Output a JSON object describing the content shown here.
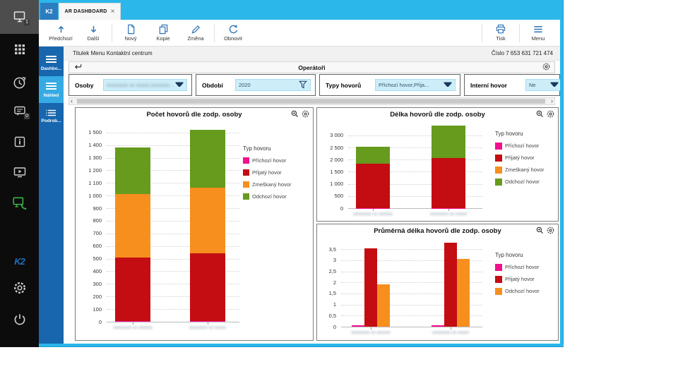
{
  "tabs": {
    "k2_tab": "K2",
    "active_tab": "AR DASHBOARD",
    "close": "×"
  },
  "toolbar": {
    "buttons": [
      {
        "label": "Předchozí",
        "icon": "arrow-up"
      },
      {
        "label": "Další",
        "icon": "arrow-down"
      },
      {
        "label": "Nový",
        "icon": "new-document"
      },
      {
        "label": "Kopie",
        "icon": "copy"
      },
      {
        "label": "Změna",
        "icon": "edit-pencil"
      },
      {
        "label": "Obnovit",
        "icon": "refresh"
      }
    ],
    "right_buttons": [
      {
        "label": "Tisk",
        "icon": "printer"
      },
      {
        "label": "Menu",
        "icon": "hamburger"
      }
    ]
  },
  "left_rail": {
    "logo": "K2",
    "desktop_badge": "1",
    "chat_badge": "0",
    "icons": [
      "desktop",
      "apps-grid",
      "history-clock",
      "chat",
      "info",
      "media-monitor",
      "callcenter-phone",
      "settings-gear",
      "power"
    ]
  },
  "nav": {
    "items": [
      {
        "label": "Dashbo...",
        "active": false
      },
      {
        "label": "Náhled",
        "active": true
      },
      {
        "label": "Podrob...",
        "active": false
      }
    ]
  },
  "header": {
    "title": "Titulek Menu Kontaktní centrum",
    "record_number": "Číslo 7 653 631 721 474"
  },
  "panel": {
    "title": "Operátoři"
  },
  "filters": [
    {
      "label": "Osoby",
      "value": "xxxxxxxx xx xxxxx,xxxxxxx...",
      "redacted": true,
      "icon": "dropdown"
    },
    {
      "label": "Období",
      "value": "2020",
      "redacted": false,
      "icon": "funnel"
    },
    {
      "label": "Typy hovorů",
      "value": "Příchozí hovor,Přija...",
      "redacted": false,
      "icon": "dropdown"
    },
    {
      "label": "Interní hovor",
      "value": "Ne",
      "redacted": false,
      "icon": "dropdown"
    }
  ],
  "scrollbar": {
    "left_arrow": "‹",
    "right_arrow": "›"
  },
  "colors": {
    "accent_cyan": "#2bb7e9",
    "nav_blue": "#1766ae",
    "nav_selected": "#35aae3",
    "toolbar_icon": "#2e74b5",
    "prichozi": "#f2108d",
    "prijaty": "#c40d12",
    "zmeskany": "#f78f1e",
    "odchozi": "#669b1e"
  },
  "chart_data": [
    {
      "type": "stacked-bar",
      "title": "Počet hovorů dle zodp. osoby",
      "legend_title": "Typ hovoru",
      "legend_position": "right",
      "grid": "horizontal-dotted",
      "categories": [
        "xxxxxxxx xx xxxxxx",
        "xxxxxxxx xx xxxxx"
      ],
      "categories_redacted": true,
      "series": [
        {
          "name": "Příchozí hovor",
          "color": "#f2108d",
          "values": [
            5,
            8
          ]
        },
        {
          "name": "Přijatý hovor",
          "color": "#c40d12",
          "values": [
            505,
            535
          ]
        },
        {
          "name": "Zmeškaný hovor",
          "color": "#f78f1e",
          "values": [
            500,
            520
          ]
        },
        {
          "name": "Odchozí hovor",
          "color": "#669b1e",
          "values": [
            373,
            460
          ]
        }
      ],
      "totals": [
        1383,
        1523
      ],
      "ylim": [
        0,
        1560
      ],
      "yticks": [
        [
          0,
          "0"
        ],
        [
          100,
          "100"
        ],
        [
          200,
          "200"
        ],
        [
          300,
          "300"
        ],
        [
          400,
          "400"
        ],
        [
          500,
          "500"
        ],
        [
          600,
          "600"
        ],
        [
          700,
          "700"
        ],
        [
          800,
          "800"
        ],
        [
          900,
          "900"
        ],
        [
          1000,
          "1 000"
        ],
        [
          1100,
          "1 100"
        ],
        [
          1200,
          "1 200"
        ],
        [
          1300,
          "1 300"
        ],
        [
          1400,
          "1 400"
        ],
        [
          1500,
          "1 500"
        ]
      ]
    },
    {
      "type": "stacked-bar",
      "title": "Délka hovorů dle zodp. osoby",
      "legend_title": "Typ hovoru",
      "legend_position": "right",
      "grid": "horizontal-dotted",
      "categories": [
        "xxxxxxxx xx xxxxxx",
        "xxxxxxxx xx xxxxx"
      ],
      "categories_redacted": true,
      "series": [
        {
          "name": "Příchozí hovor",
          "color": "#f2108d",
          "values": [
            5,
            5
          ]
        },
        {
          "name": "Přijatý hovor",
          "color": "#c40d12",
          "values": [
            1815,
            2065
          ]
        },
        {
          "name": "Zmeškaný hovor",
          "color": "#f78f1e",
          "values": [
            0,
            0
          ]
        },
        {
          "name": "Odchozí hovor",
          "color": "#669b1e",
          "values": [
            700,
            1330
          ]
        }
      ],
      "totals": [
        2520,
        3400
      ],
      "ylim": [
        0,
        3550
      ],
      "yticks": [
        [
          0,
          "0"
        ],
        [
          500,
          "500"
        ],
        [
          1000,
          "1 000"
        ],
        [
          1500,
          "1 500"
        ],
        [
          2000,
          "2 000"
        ],
        [
          2500,
          "2 500"
        ],
        [
          3000,
          "3 000"
        ]
      ]
    },
    {
      "type": "grouped-bar",
      "title": "Průměrná délka hovorů dle zodp. osoby",
      "legend_title": "Typ hovoru",
      "legend_position": "right",
      "grid": "horizontal-dotted",
      "categories": [
        "xxxxxxxx xx xxxxxx",
        "xxxxxxxx xx xxxxx"
      ],
      "categories_redacted": true,
      "series": [
        {
          "name": "Příchozí hovor",
          "color": "#f2108d",
          "values": [
            0.05,
            0.05
          ]
        },
        {
          "name": "Přijatý hovor",
          "color": "#c40d12",
          "values": [
            3.55,
            3.8
          ]
        },
        {
          "name": "Odchozí hovor",
          "color": "#f78f1e",
          "values": [
            1.9,
            3.05
          ]
        }
      ],
      "ylim": [
        0,
        3.95
      ],
      "yticks": [
        [
          0,
          "0"
        ],
        [
          0.5,
          "0,5"
        ],
        [
          1,
          "1"
        ],
        [
          1.5,
          "1,5"
        ],
        [
          2,
          "2"
        ],
        [
          2.5,
          "2,5"
        ],
        [
          3,
          "3"
        ],
        [
          3.5,
          "3,5"
        ]
      ]
    }
  ]
}
